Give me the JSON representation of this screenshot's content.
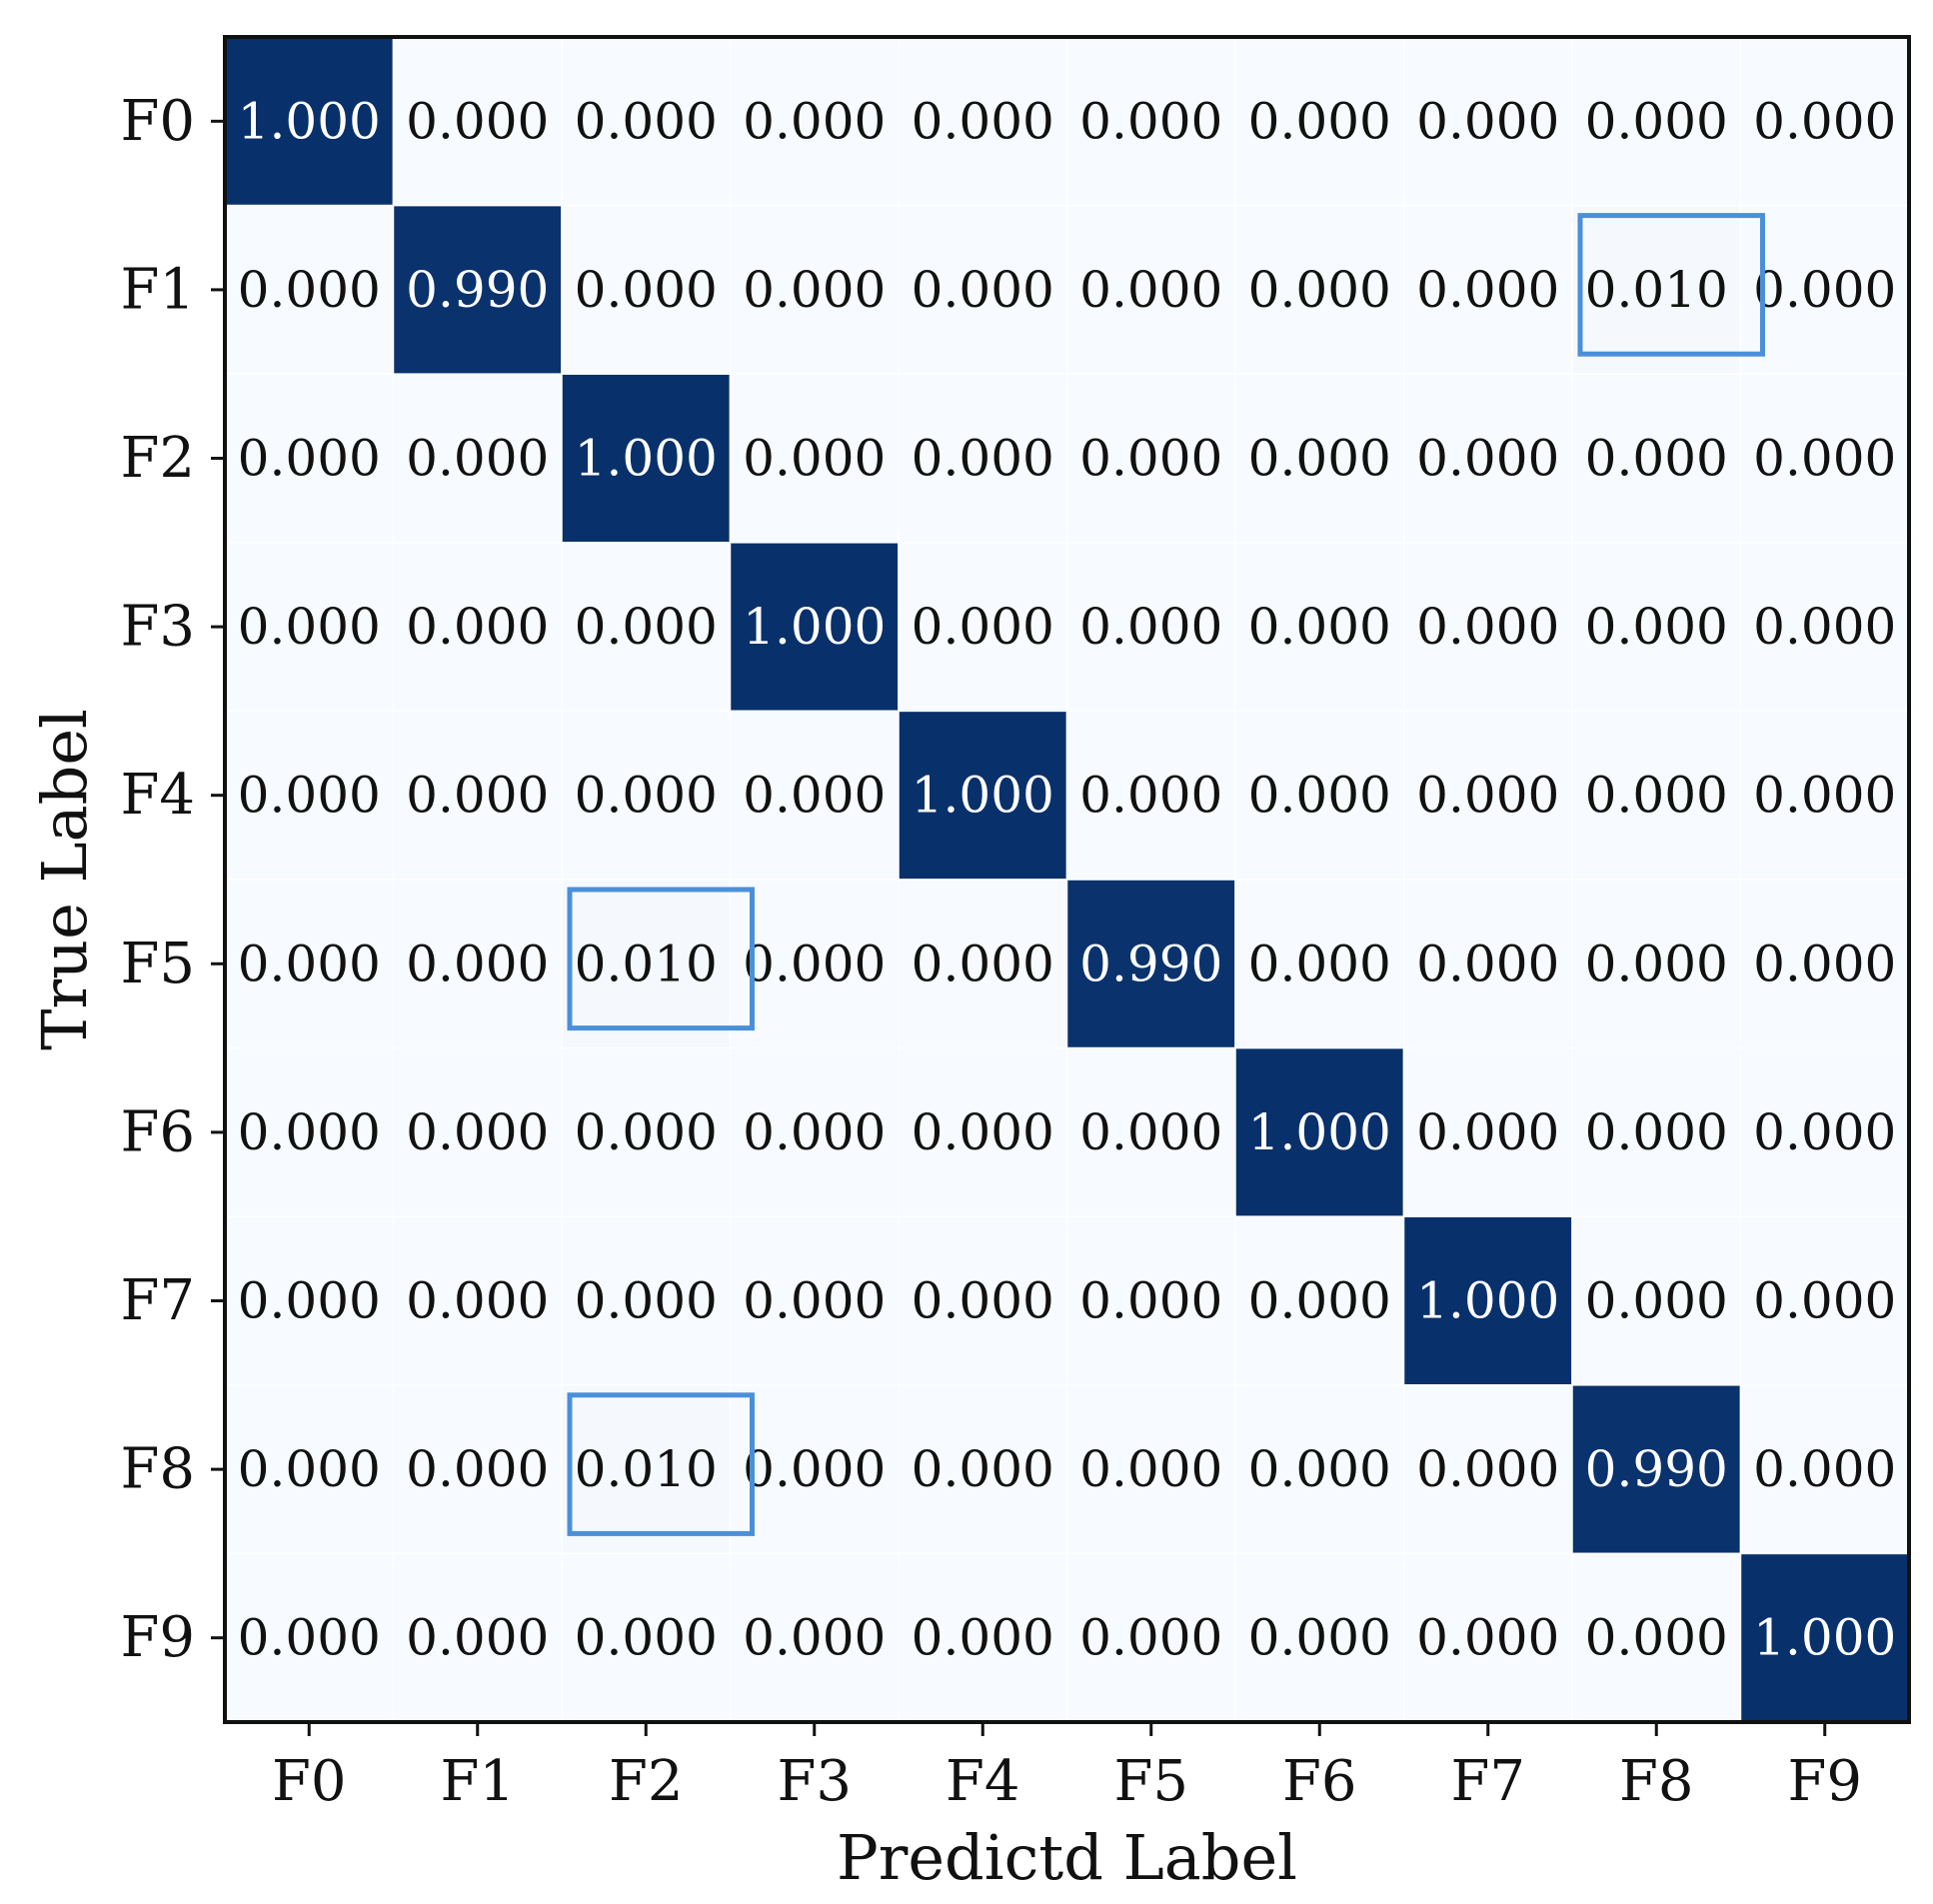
{
  "chart_data": {
    "type": "heatmap",
    "title": "",
    "xlabel": "Predictd Label",
    "ylabel": "True Label",
    "x_categories": [
      "F0",
      "F1",
      "F2",
      "F3",
      "F4",
      "F5",
      "F6",
      "F7",
      "F8",
      "F9"
    ],
    "y_categories": [
      "F0",
      "F1",
      "F2",
      "F3",
      "F4",
      "F5",
      "F6",
      "F7",
      "F8",
      "F9"
    ],
    "values": [
      [
        1.0,
        0.0,
        0.0,
        0.0,
        0.0,
        0.0,
        0.0,
        0.0,
        0.0,
        0.0
      ],
      [
        0.0,
        0.99,
        0.0,
        0.0,
        0.0,
        0.0,
        0.0,
        0.0,
        0.01,
        0.0
      ],
      [
        0.0,
        0.0,
        1.0,
        0.0,
        0.0,
        0.0,
        0.0,
        0.0,
        0.0,
        0.0
      ],
      [
        0.0,
        0.0,
        0.0,
        1.0,
        0.0,
        0.0,
        0.0,
        0.0,
        0.0,
        0.0
      ],
      [
        0.0,
        0.0,
        0.0,
        0.0,
        1.0,
        0.0,
        0.0,
        0.0,
        0.0,
        0.0
      ],
      [
        0.0,
        0.0,
        0.01,
        0.0,
        0.0,
        0.99,
        0.0,
        0.0,
        0.0,
        0.0
      ],
      [
        0.0,
        0.0,
        0.0,
        0.0,
        0.0,
        0.0,
        1.0,
        0.0,
        0.0,
        0.0
      ],
      [
        0.0,
        0.0,
        0.0,
        0.0,
        0.0,
        0.0,
        0.0,
        1.0,
        0.0,
        0.0
      ],
      [
        0.0,
        0.0,
        0.01,
        0.0,
        0.0,
        0.0,
        0.0,
        0.0,
        0.99,
        0.0
      ],
      [
        0.0,
        0.0,
        0.0,
        0.0,
        0.0,
        0.0,
        0.0,
        0.0,
        0.0,
        1.0
      ]
    ],
    "value_format": "0.000",
    "colormap": "Blues",
    "color_low": "#f7fbff",
    "color_high": "#08306b",
    "text_color_dark_cells": "#ffffff",
    "text_color_light_cells": "#111111",
    "highlighted_cells": [
      {
        "row": "F1",
        "col": "F8"
      },
      {
        "row": "F5",
        "col": "F2"
      },
      {
        "row": "F8",
        "col": "F2"
      }
    ],
    "highlight_color": "#4a90d9"
  }
}
